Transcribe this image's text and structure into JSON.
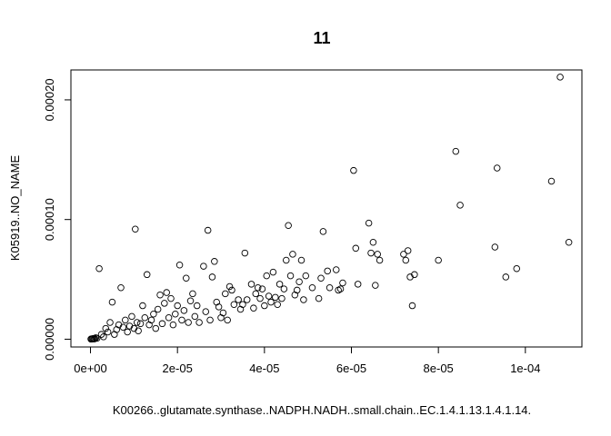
{
  "chart_data": {
    "type": "scatter",
    "title": "11",
    "xlabel": "K00266..glutamate.synthase..NADPH.NADH..small.chain..EC.1.4.1.13.1.4.1.14.",
    "ylabel": "K05919..NO_NAME",
    "xlim": [
      -4.5e-06,
      0.000113
    ],
    "ylim": [
      -6.5e-06,
      0.000225
    ],
    "xticks": [
      0,
      2e-05,
      4e-05,
      6e-05,
      8e-05,
      0.0001
    ],
    "xtick_labels": [
      "0e+00",
      "2e-05",
      "4e-05",
      "6e-05",
      "8e-05",
      "1e-04"
    ],
    "yticks": [
      0,
      0.0001,
      0.0002
    ],
    "ytick_labels": [
      "0.00000",
      "0.00010",
      "0.00020"
    ],
    "grid": false,
    "legend": "none",
    "marker": "open-circle",
    "points": [
      [
        1e-07,
        1e-07
      ],
      [
        2e-07,
        2e-07
      ],
      [
        4e-07,
        3e-07
      ],
      [
        6e-07,
        5e-07
      ],
      [
        8e-07,
        2e-07
      ],
      [
        1e-06,
        4e-07
      ],
      [
        1.2e-06,
        1.2e-06
      ],
      [
        1.5e-06,
        8e-07
      ],
      [
        2e-06,
        5.9e-05
      ],
      [
        2.5e-06,
        4e-06
      ],
      [
        3e-06,
        2e-06
      ],
      [
        3.5e-06,
        9e-06
      ],
      [
        4e-06,
        6e-06
      ],
      [
        4.5e-06,
        1.4e-05
      ],
      [
        5e-06,
        3.1e-05
      ],
      [
        5.5e-06,
        4e-06
      ],
      [
        6e-06,
        8e-06
      ],
      [
        6.5e-06,
        1.2e-05
      ],
      [
        7e-06,
        4.3e-05
      ],
      [
        7.5e-06,
        1e-05
      ],
      [
        8e-06,
        1.6e-05
      ],
      [
        8.5e-06,
        6e-06
      ],
      [
        9e-06,
        1.1e-05
      ],
      [
        9.5e-06,
        1.9e-05
      ],
      [
        1e-05,
        9e-06
      ],
      [
        1.03e-05,
        9.2e-05
      ],
      [
        1.07e-05,
        1.4e-05
      ],
      [
        1.1e-05,
        7e-06
      ],
      [
        1.15e-05,
        1.3e-05
      ],
      [
        1.2e-05,
        2.8e-05
      ],
      [
        1.25e-05,
        1.8e-05
      ],
      [
        1.3e-05,
        5.4e-05
      ],
      [
        1.35e-05,
        1.2e-05
      ],
      [
        1.4e-05,
        1.6e-05
      ],
      [
        1.45e-05,
        2.1e-05
      ],
      [
        1.5e-05,
        9e-06
      ],
      [
        1.55e-05,
        2.5e-05
      ],
      [
        1.6e-05,
        3.7e-05
      ],
      [
        1.65e-05,
        1.3e-05
      ],
      [
        1.7e-05,
        3e-05
      ],
      [
        1.75e-05,
        3.9e-05
      ],
      [
        1.8e-05,
        1.8e-05
      ],
      [
        1.85e-05,
        3.4e-05
      ],
      [
        1.9e-05,
        1.2e-05
      ],
      [
        1.95e-05,
        2.1e-05
      ],
      [
        2e-05,
        2.8e-05
      ],
      [
        2.05e-05,
        6.2e-05
      ],
      [
        2.1e-05,
        1.6e-05
      ],
      [
        2.15e-05,
        2.4e-05
      ],
      [
        2.2e-05,
        5.1e-05
      ],
      [
        2.25e-05,
        1.4e-05
      ],
      [
        2.3e-05,
        3.2e-05
      ],
      [
        2.35e-05,
        3.8e-05
      ],
      [
        2.4e-05,
        1.9e-05
      ],
      [
        2.45e-05,
        2.8e-05
      ],
      [
        2.5e-05,
        1.4e-05
      ],
      [
        2.6e-05,
        6.1e-05
      ],
      [
        2.65e-05,
        2.3e-05
      ],
      [
        2.7e-05,
        9.1e-05
      ],
      [
        2.75e-05,
        1.6e-05
      ],
      [
        2.8e-05,
        5.2e-05
      ],
      [
        2.85e-05,
        6.5e-05
      ],
      [
        2.9e-05,
        3.1e-05
      ],
      [
        2.95e-05,
        2.7e-05
      ],
      [
        3e-05,
        1.8e-05
      ],
      [
        3.05e-05,
        2.2e-05
      ],
      [
        3.1e-05,
        3.8e-05
      ],
      [
        3.15e-05,
        1.6e-05
      ],
      [
        3.2e-05,
        4.4e-05
      ],
      [
        3.25e-05,
        4.1e-05
      ],
      [
        3.3e-05,
        2.9e-05
      ],
      [
        3.4e-05,
        3.3e-05
      ],
      [
        3.45e-05,
        2.5e-05
      ],
      [
        3.5e-05,
        2.9e-05
      ],
      [
        3.55e-05,
        7.2e-05
      ],
      [
        3.6e-05,
        3.3e-05
      ],
      [
        3.7e-05,
        4.6e-05
      ],
      [
        3.75e-05,
        2.6e-05
      ],
      [
        3.8e-05,
        3.8e-05
      ],
      [
        3.85e-05,
        4.3e-05
      ],
      [
        3.9e-05,
        3.4e-05
      ],
      [
        3.95e-05,
        4.2e-05
      ],
      [
        4e-05,
        2.8e-05
      ],
      [
        4.05e-05,
        5.3e-05
      ],
      [
        4.1e-05,
        3.6e-05
      ],
      [
        4.15e-05,
        3.1e-05
      ],
      [
        4.2e-05,
        5.6e-05
      ],
      [
        4.25e-05,
        3.5e-05
      ],
      [
        4.3e-05,
        2.9e-05
      ],
      [
        4.35e-05,
        4.6e-05
      ],
      [
        4.4e-05,
        3.4e-05
      ],
      [
        4.45e-05,
        4.2e-05
      ],
      [
        4.5e-05,
        6.6e-05
      ],
      [
        4.55e-05,
        9.5e-05
      ],
      [
        4.6e-05,
        5.3e-05
      ],
      [
        4.65e-05,
        7.1e-05
      ],
      [
        4.7e-05,
        3.7e-05
      ],
      [
        4.75e-05,
        4.1e-05
      ],
      [
        4.8e-05,
        4.8e-05
      ],
      [
        4.85e-05,
        6.6e-05
      ],
      [
        4.9e-05,
        3.3e-05
      ],
      [
        4.95e-05,
        5.3e-05
      ],
      [
        5.1e-05,
        4.3e-05
      ],
      [
        5.25e-05,
        3.4e-05
      ],
      [
        5.3e-05,
        5.1e-05
      ],
      [
        5.35e-05,
        9e-05
      ],
      [
        5.45e-05,
        5.7e-05
      ],
      [
        5.5e-05,
        4.3e-05
      ],
      [
        5.65e-05,
        5.8e-05
      ],
      [
        5.7e-05,
        4.1e-05
      ],
      [
        5.75e-05,
        4.2e-05
      ],
      [
        5.8e-05,
        4.7e-05
      ],
      [
        6.05e-05,
        0.000141
      ],
      [
        6.1e-05,
        7.6e-05
      ],
      [
        6.15e-05,
        4.6e-05
      ],
      [
        6.4e-05,
        9.7e-05
      ],
      [
        6.45e-05,
        7.2e-05
      ],
      [
        6.5e-05,
        8.1e-05
      ],
      [
        6.55e-05,
        4.5e-05
      ],
      [
        6.6e-05,
        7.1e-05
      ],
      [
        6.65e-05,
        6.6e-05
      ],
      [
        7.2e-05,
        7.1e-05
      ],
      [
        7.25e-05,
        6.6e-05
      ],
      [
        7.3e-05,
        7.4e-05
      ],
      [
        7.35e-05,
        5.2e-05
      ],
      [
        7.4e-05,
        2.8e-05
      ],
      [
        7.45e-05,
        5.4e-05
      ],
      [
        8e-05,
        6.6e-05
      ],
      [
        8.4e-05,
        0.000157
      ],
      [
        8.5e-05,
        0.000112
      ],
      [
        9.3e-05,
        7.7e-05
      ],
      [
        9.35e-05,
        0.000143
      ],
      [
        9.55e-05,
        5.2e-05
      ],
      [
        9.8e-05,
        5.9e-05
      ],
      [
        0.000106,
        0.000132
      ],
      [
        0.000108,
        0.000219
      ],
      [
        0.00011,
        8.1e-05
      ]
    ]
  }
}
